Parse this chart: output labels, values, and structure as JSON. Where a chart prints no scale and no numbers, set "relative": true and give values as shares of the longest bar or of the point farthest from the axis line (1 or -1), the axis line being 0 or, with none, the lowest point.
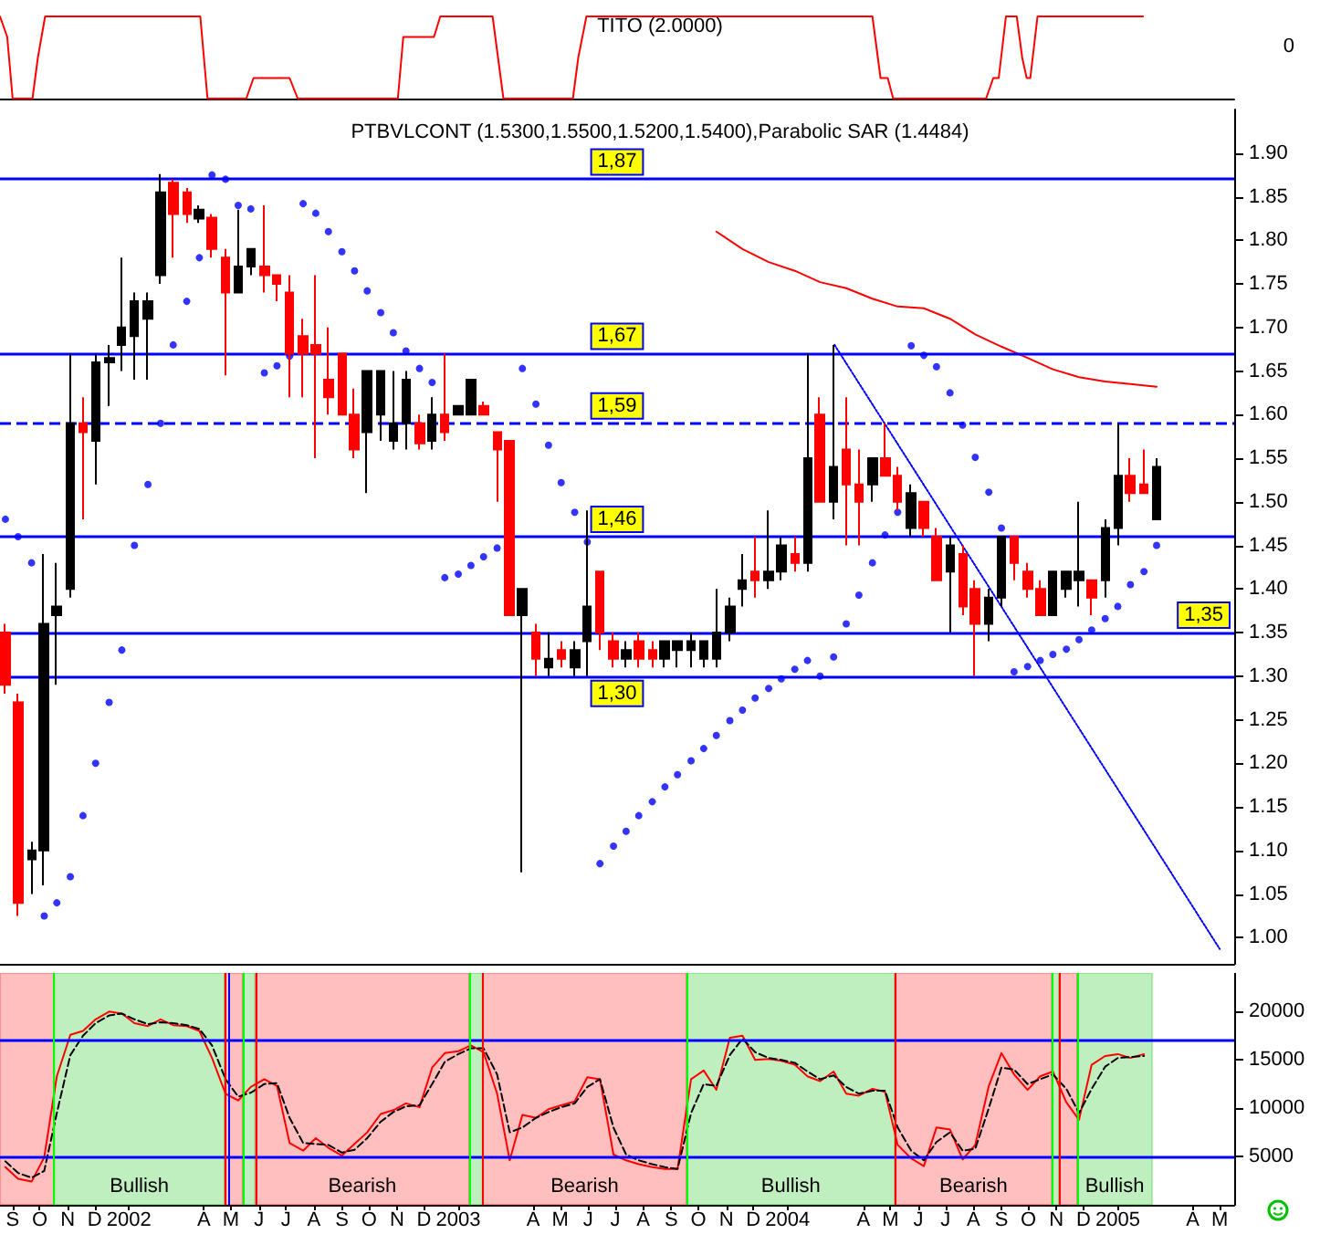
{
  "chart_data": [
    {
      "type": "line",
      "title": "TITO (2.0000)",
      "relative": true,
      "annotations": [
        "0"
      ],
      "tick_labels": false,
      "xlim": [
        "2001-08-31",
        "2005-05-30"
      ],
      "color": "#ff0000",
      "x": [
        "2001-08-31",
        "2001-09-08",
        "2001-09-14",
        "2001-10-06",
        "2001-10-12",
        "2001-10-20",
        "2002-04-10",
        "2002-04-18",
        "2002-05-31",
        "2002-06-08",
        "2002-07-18",
        "2002-07-27",
        "2002-11-15",
        "2002-11-21",
        "2002-12-25",
        "2003-01-01",
        "2003-02-28",
        "2003-03-06",
        "2003-03-12",
        "2003-05-28",
        "2003-06-03",
        "2003-06-12",
        "2004-04-24",
        "2004-05-03",
        "2004-05-11",
        "2004-05-17",
        "2004-08-28",
        "2004-09-05",
        "2004-09-11",
        "2004-09-19",
        "2004-10-01",
        "2004-10-07",
        "2004-10-12",
        "2004-10-16",
        "2004-10-24",
        "2005-02-18"
      ],
      "values": [
        1,
        0.75,
        0,
        0,
        0.5,
        1,
        1,
        0,
        0,
        0.25,
        0.25,
        0,
        0,
        0.75,
        0.75,
        1,
        1,
        0.5,
        0,
        0,
        0.5,
        1,
        1,
        0.25,
        0.25,
        0,
        0,
        0.25,
        0.25,
        1,
        1,
        0.5,
        0.25,
        0.25,
        1,
        1
      ]
    },
    {
      "type": "candlestick",
      "title": "PTBVLCONT (1.5300,1.5500,1.5200,1.5400),Parabolic SAR (1.4484)",
      "tick_labels": "y",
      "colors": [
        "#ff0000",
        "#ff0000",
        "#000000",
        "#000000",
        "#000000",
        "#000000",
        "#ff0000",
        "#000000",
        "#000000",
        "#000000",
        "#000000",
        "#000000",
        "#000000",
        "#ff0000",
        "#ff0000",
        "#000000",
        "#ff0000",
        "#ff0000",
        "#000000",
        "#000000",
        "#ff0000",
        "#ff0000",
        "#ff0000",
        "#ff0000",
        "#ff0000",
        "#ff0000",
        "#ff0000",
        "#ff0000",
        "#000000",
        "#000000",
        "#000000",
        "#000000",
        "#ff0000",
        "#000000",
        "#ff0000",
        "#000000",
        "#000000",
        "#ff0000",
        "#ff0000",
        "#ff0000",
        "#000000",
        "#ff0000",
        "#000000",
        "#ff0000",
        "#000000",
        "#000000",
        "#ff0000",
        "#ff0000",
        "#000000",
        "#ff0000",
        "#ff0000",
        "#000000",
        "#000000",
        "#000000",
        "#000000",
        "#000000",
        "#000000",
        "#000000",
        "#ff0000",
        "#000000",
        "#000000",
        "#ff0000",
        "#000000",
        "#ff0000",
        "#000000",
        "#ff0000",
        "#ff0000",
        "#000000",
        "#ff0000",
        "#ff0000",
        "#000000",
        "#ff0000",
        "#ff0000",
        "#000000",
        "#ff0000",
        "#ff0000",
        "#000000",
        "#000000",
        "#ff0000",
        "#ff0000",
        "#ff0000",
        "#000000",
        "#000000",
        "#000000",
        "#ff0000",
        "#000000",
        "#000000",
        "#ff0000",
        "#ff0000",
        "#000000"
      ],
      "xlim": [
        "2001-08-31",
        "2005-05-30"
      ],
      "ylim": [
        0.97,
        1.95
      ],
      "yticks": [
        {
          "value": 1.0,
          "label": "1.00"
        },
        {
          "value": 1.05,
          "label": "1.05"
        },
        {
          "value": 1.1,
          "label": "1.10"
        },
        {
          "value": 1.15,
          "label": "1.15"
        },
        {
          "value": 1.2,
          "label": "1.20"
        },
        {
          "value": 1.25,
          "label": "1.25"
        },
        {
          "value": 1.3,
          "label": "1.30"
        },
        {
          "value": 1.35,
          "label": "1.35"
        },
        {
          "value": 1.4,
          "label": "1.40"
        },
        {
          "value": 1.45,
          "label": "1.45"
        },
        {
          "value": 1.5,
          "label": "1.50"
        },
        {
          "value": 1.55,
          "label": "1.55"
        },
        {
          "value": 1.6,
          "label": "1.60"
        },
        {
          "value": 1.65,
          "label": "1.65"
        },
        {
          "value": 1.7,
          "label": "1.70"
        },
        {
          "value": 1.75,
          "label": "1.75"
        },
        {
          "value": 1.8,
          "label": "1.80"
        },
        {
          "value": 1.85,
          "label": "1.85"
        },
        {
          "value": 1.9,
          "label": "1.90"
        }
      ],
      "x": [
        "2001-09-06",
        "2001-09-20",
        "2001-10-05",
        "2001-10-19",
        "2001-11-02",
        "2001-11-17",
        "2001-12-01",
        "2001-12-15",
        "2001-12-30",
        "2002-01-13",
        "2002-01-27",
        "2002-02-11",
        "2002-02-25",
        "2002-03-11",
        "2002-03-26",
        "2002-04-09",
        "2002-04-23",
        "2002-05-08",
        "2002-05-22",
        "2002-06-05",
        "2002-06-20",
        "2002-07-04",
        "2002-07-18",
        "2002-08-02",
        "2002-08-16",
        "2002-08-30",
        "2002-09-14",
        "2002-09-28",
        "2002-10-12",
        "2002-10-27",
        "2002-11-10",
        "2002-11-24",
        "2002-12-09",
        "2002-12-23",
        "2003-01-06",
        "2003-01-21",
        "2003-02-04",
        "2003-02-18",
        "2003-03-05",
        "2003-03-19",
        "2003-04-02",
        "2003-04-17",
        "2003-05-01",
        "2003-05-15",
        "2003-05-30",
        "2003-06-13",
        "2003-06-27",
        "2003-07-12",
        "2003-07-26",
        "2003-08-09",
        "2003-08-24",
        "2003-09-07",
        "2003-09-21",
        "2003-10-06",
        "2003-10-20",
        "2003-11-03",
        "2003-11-18",
        "2003-12-02",
        "2003-12-16",
        "2003-12-31",
        "2004-01-14",
        "2004-01-29",
        "2004-02-12",
        "2004-02-26",
        "2004-03-12",
        "2004-03-26",
        "2004-04-09",
        "2004-04-24",
        "2004-05-08",
        "2004-05-22",
        "2004-06-06",
        "2004-06-20",
        "2004-07-04",
        "2004-07-19",
        "2004-08-02",
        "2004-08-16",
        "2004-08-31",
        "2004-09-14",
        "2004-09-28",
        "2004-10-13",
        "2004-10-27",
        "2004-11-10",
        "2004-11-25",
        "2004-12-09",
        "2004-12-23",
        "2005-01-07",
        "2005-01-21",
        "2005-02-04",
        "2005-02-19",
        "2005-03-05"
      ],
      "ohlc": [
        [
          1.35,
          1.36,
          1.28,
          1.29
        ],
        [
          1.27,
          1.28,
          1.025,
          1.04
        ],
        [
          1.09,
          1.11,
          1.05,
          1.1
        ],
        [
          1.1,
          1.44,
          1.06,
          1.36
        ],
        [
          1.37,
          1.43,
          1.29,
          1.38
        ],
        [
          1.4,
          1.67,
          1.39,
          1.59
        ],
        [
          1.59,
          1.62,
          1.48,
          1.58
        ],
        [
          1.57,
          1.67,
          1.52,
          1.66
        ],
        [
          1.66,
          1.68,
          1.61,
          1.665
        ],
        [
          1.68,
          1.78,
          1.65,
          1.7
        ],
        [
          1.69,
          1.74,
          1.64,
          1.73
        ],
        [
          1.71,
          1.74,
          1.64,
          1.73
        ],
        [
          1.76,
          1.876,
          1.75,
          1.855
        ],
        [
          1.866,
          1.87,
          1.78,
          1.83
        ],
        [
          1.855,
          1.86,
          1.82,
          1.83
        ],
        [
          1.825,
          1.84,
          1.82,
          1.835
        ],
        [
          1.826,
          1.83,
          1.78,
          1.79
        ],
        [
          1.78,
          1.79,
          1.645,
          1.74
        ],
        [
          1.74,
          1.835,
          1.74,
          1.77
        ],
        [
          1.77,
          1.79,
          1.76,
          1.79
        ],
        [
          1.77,
          1.84,
          1.74,
          1.76
        ],
        [
          1.76,
          1.76,
          1.73,
          1.75
        ],
        [
          1.74,
          1.76,
          1.62,
          1.67
        ],
        [
          1.69,
          1.71,
          1.62,
          1.67
        ],
        [
          1.68,
          1.76,
          1.55,
          1.67
        ],
        [
          1.64,
          1.7,
          1.6,
          1.62
        ],
        [
          1.67,
          1.67,
          1.6,
          1.6
        ],
        [
          1.6,
          1.63,
          1.55,
          1.56
        ],
        [
          1.58,
          1.65,
          1.51,
          1.65
        ],
        [
          1.6,
          1.65,
          1.57,
          1.65
        ],
        [
          1.57,
          1.65,
          1.56,
          1.59
        ],
        [
          1.59,
          1.65,
          1.56,
          1.64
        ],
        [
          1.59,
          1.6,
          1.56,
          1.567
        ],
        [
          1.57,
          1.62,
          1.56,
          1.6
        ],
        [
          1.6,
          1.67,
          1.57,
          1.58
        ],
        [
          1.6,
          1.61,
          1.6,
          1.61
        ],
        [
          1.6,
          1.64,
          1.6,
          1.64
        ],
        [
          1.61,
          1.615,
          1.6,
          1.6
        ],
        [
          1.58,
          1.58,
          1.5,
          1.56
        ],
        [
          1.57,
          1.57,
          1.37,
          1.37
        ],
        [
          1.37,
          1.4,
          1.075,
          1.4
        ],
        [
          1.35,
          1.36,
          1.3,
          1.32
        ],
        [
          1.31,
          1.35,
          1.3,
          1.32
        ],
        [
          1.33,
          1.34,
          1.31,
          1.32
        ],
        [
          1.31,
          1.34,
          1.3,
          1.33
        ],
        [
          1.34,
          1.49,
          1.3,
          1.38
        ],
        [
          1.42,
          1.42,
          1.33,
          1.35
        ],
        [
          1.34,
          1.35,
          1.31,
          1.32
        ],
        [
          1.32,
          1.34,
          1.31,
          1.33
        ],
        [
          1.34,
          1.35,
          1.31,
          1.32
        ],
        [
          1.33,
          1.34,
          1.31,
          1.32
        ],
        [
          1.32,
          1.34,
          1.31,
          1.34
        ],
        [
          1.33,
          1.34,
          1.31,
          1.34
        ],
        [
          1.33,
          1.35,
          1.31,
          1.34
        ],
        [
          1.32,
          1.34,
          1.31,
          1.34
        ],
        [
          1.32,
          1.4,
          1.31,
          1.35
        ],
        [
          1.35,
          1.39,
          1.34,
          1.38
        ],
        [
          1.4,
          1.44,
          1.38,
          1.41
        ],
        [
          1.42,
          1.46,
          1.39,
          1.41
        ],
        [
          1.41,
          1.49,
          1.4,
          1.42
        ],
        [
          1.42,
          1.46,
          1.41,
          1.45
        ],
        [
          1.44,
          1.46,
          1.42,
          1.43
        ],
        [
          1.43,
          1.67,
          1.42,
          1.55
        ],
        [
          1.6,
          1.62,
          1.5,
          1.5
        ],
        [
          1.5,
          1.68,
          1.48,
          1.54
        ],
        [
          1.56,
          1.62,
          1.45,
          1.52
        ],
        [
          1.52,
          1.56,
          1.45,
          1.5
        ],
        [
          1.52,
          1.55,
          1.5,
          1.55
        ],
        [
          1.55,
          1.59,
          1.53,
          1.53
        ],
        [
          1.53,
          1.54,
          1.49,
          1.5
        ],
        [
          1.47,
          1.52,
          1.46,
          1.51
        ],
        [
          1.5,
          1.5,
          1.46,
          1.47
        ],
        [
          1.46,
          1.47,
          1.41,
          1.41
        ],
        [
          1.42,
          1.46,
          1.35,
          1.45
        ],
        [
          1.44,
          1.45,
          1.37,
          1.38
        ],
        [
          1.4,
          1.41,
          1.3,
          1.36
        ],
        [
          1.36,
          1.4,
          1.34,
          1.39
        ],
        [
          1.39,
          1.46,
          1.38,
          1.46
        ],
        [
          1.46,
          1.46,
          1.41,
          1.43
        ],
        [
          1.42,
          1.43,
          1.39,
          1.4
        ],
        [
          1.4,
          1.41,
          1.37,
          1.37
        ],
        [
          1.37,
          1.42,
          1.37,
          1.42
        ],
        [
          1.4,
          1.42,
          1.39,
          1.42
        ],
        [
          1.41,
          1.5,
          1.38,
          1.42
        ],
        [
          1.41,
          1.41,
          1.37,
          1.39
        ],
        [
          1.41,
          1.48,
          1.39,
          1.47
        ],
        [
          1.47,
          1.59,
          1.45,
          1.53
        ],
        [
          1.53,
          1.55,
          1.5,
          1.51
        ],
        [
          1.52,
          1.56,
          1.51,
          1.51
        ],
        [
          1.48,
          1.55,
          1.48,
          1.54
        ]
      ],
      "series": [
        {
          "type": "scatter",
          "marker": "circle",
          "color": "#0000ff",
          "values": [
            1.48,
            1.46,
            1.43,
            1.025,
            1.04,
            1.07,
            1.14,
            1.2,
            1.27,
            1.33,
            1.45,
            1.52,
            1.59,
            1.68,
            1.73,
            1.78,
            1.875,
            1.87,
            1.84,
            1.836,
            1.648,
            1.656,
            1.667,
            1.842,
            1.831,
            1.81,
            1.787,
            1.765,
            1.742,
            1.717,
            1.694,
            1.673,
            1.653,
            1.637,
            1.413,
            1.417,
            1.427,
            1.437,
            1.447,
            null,
            1.653,
            1.612,
            1.565,
            1.522,
            1.488,
            1.454,
            1.085,
            1.105,
            1.122,
            1.14,
            1.156,
            1.173,
            1.187,
            1.203,
            1.217,
            1.232,
            1.249,
            1.261,
            1.275,
            1.286,
            1.297,
            1.308,
            1.318,
            1.3,
            1.322,
            1.36,
            1.393,
            1.43,
            1.462,
            1.488,
            1.679,
            1.668,
            1.655,
            1.625,
            1.588,
            1.551,
            1.511,
            1.47,
            1.305,
            1.311,
            1.318,
            1.325,
            1.331,
            1.342,
            1.353,
            1.366,
            1.38,
            1.405,
            1.42,
            1.45
          ]
        },
        {
          "type": "line",
          "color": "#ff0000",
          "x": [
            "2003-11-03",
            "2003-12-02",
            "2003-12-31",
            "2004-01-29",
            "2004-02-26",
            "2004-03-26",
            "2004-04-24",
            "2004-05-22",
            "2004-06-20",
            "2004-07-19",
            "2004-08-16",
            "2004-09-14",
            "2004-10-13",
            "2004-11-10",
            "2004-12-09",
            "2005-01-07",
            "2005-02-04",
            "2005-03-05"
          ],
          "values": [
            1.81,
            1.79,
            1.775,
            1.765,
            1.752,
            1.745,
            1.733,
            1.724,
            1.722,
            1.71,
            1.692,
            1.678,
            1.665,
            1.652,
            1.643,
            1.638,
            1.635,
            1.632
          ]
        },
        {
          "type": "line",
          "color": "#0000ff",
          "line_style": "dotted",
          "x": [
            "2004-03-13",
            "2005-05-14"
          ],
          "values": [
            1.68,
            0.987
          ]
        }
      ],
      "ref_lines": [
        {
          "axis": "y",
          "value": 1.87,
          "label": "1,87",
          "color": "#0000ff"
        },
        {
          "axis": "y",
          "value": 1.67,
          "label": "1,67",
          "color": "#0000ff"
        },
        {
          "axis": "y",
          "value": 1.59,
          "label": "1,59",
          "color": "#0000ff",
          "line_style": "dashed"
        },
        {
          "axis": "y",
          "value": 1.46,
          "label": "1,46",
          "color": "#0000ff"
        },
        {
          "axis": "y",
          "value": 1.35,
          "label": "1,35",
          "color": "#0000ff"
        },
        {
          "axis": "y",
          "value": 1.3,
          "label": "1,30",
          "color": "#0000ff"
        }
      ]
    },
    {
      "type": "line",
      "xlim": [
        "2001-08-31",
        "2005-05-30"
      ],
      "ylim": [
        0,
        24000
      ],
      "yticks": [
        5000,
        10000,
        15000,
        20000
      ],
      "xticks": [
        {
          "value": "2001-09-14",
          "label": "S"
        },
        {
          "value": "2001-10-14",
          "label": "O"
        },
        {
          "value": "2001-11-14",
          "label": "N"
        },
        {
          "value": "2001-12-14",
          "label": "D"
        },
        {
          "value": "2002-01-21",
          "label": "2002"
        },
        {
          "value": "2002-04-14",
          "label": "A"
        },
        {
          "value": "2002-05-14",
          "label": "M"
        },
        {
          "value": "2002-06-14",
          "label": "J"
        },
        {
          "value": "2002-07-14",
          "label": "J"
        },
        {
          "value": "2002-08-14",
          "label": "A"
        },
        {
          "value": "2002-09-14",
          "label": "S"
        },
        {
          "value": "2002-10-14",
          "label": "O"
        },
        {
          "value": "2002-11-14",
          "label": "N"
        },
        {
          "value": "2002-12-14",
          "label": "D"
        },
        {
          "value": "2003-01-21",
          "label": "2003"
        },
        {
          "value": "2003-04-14",
          "label": "A"
        },
        {
          "value": "2003-05-14",
          "label": "M"
        },
        {
          "value": "2003-06-14",
          "label": "J"
        },
        {
          "value": "2003-07-14",
          "label": "J"
        },
        {
          "value": "2003-08-14",
          "label": "A"
        },
        {
          "value": "2003-09-14",
          "label": "S"
        },
        {
          "value": "2003-10-14",
          "label": "O"
        },
        {
          "value": "2003-11-14",
          "label": "N"
        },
        {
          "value": "2003-12-14",
          "label": "D"
        },
        {
          "value": "2004-01-21",
          "label": "2004"
        },
        {
          "value": "2004-04-14",
          "label": "A"
        },
        {
          "value": "2004-05-14",
          "label": "M"
        },
        {
          "value": "2004-06-14",
          "label": "J"
        },
        {
          "value": "2004-07-14",
          "label": "J"
        },
        {
          "value": "2004-08-14",
          "label": "A"
        },
        {
          "value": "2004-09-14",
          "label": "S"
        },
        {
          "value": "2004-10-14",
          "label": "O"
        },
        {
          "value": "2004-11-14",
          "label": "N"
        },
        {
          "value": "2004-12-14",
          "label": "D"
        },
        {
          "value": "2005-01-21",
          "label": "2005"
        },
        {
          "value": "2005-04-14",
          "label": "A"
        },
        {
          "value": "2005-05-14",
          "label": "M"
        }
      ],
      "x": [
        "2001-09-06",
        "2001-09-20",
        "2001-10-05",
        "2001-10-19",
        "2001-11-02",
        "2001-11-17",
        "2001-12-01",
        "2001-12-15",
        "2001-12-30",
        "2002-01-13",
        "2002-01-27",
        "2002-02-11",
        "2002-02-25",
        "2002-03-11",
        "2002-03-26",
        "2002-04-09",
        "2002-04-23",
        "2002-05-08",
        "2002-05-22",
        "2002-06-05",
        "2002-06-20",
        "2002-07-04",
        "2002-07-18",
        "2002-08-02",
        "2002-08-16",
        "2002-08-30",
        "2002-09-14",
        "2002-09-28",
        "2002-10-12",
        "2002-10-27",
        "2002-11-10",
        "2002-11-24",
        "2002-12-09",
        "2002-12-23",
        "2003-01-06",
        "2003-01-21",
        "2003-02-04",
        "2003-02-18",
        "2003-03-05",
        "2003-03-19",
        "2003-04-02",
        "2003-04-17",
        "2003-05-01",
        "2003-05-15",
        "2003-05-30",
        "2003-06-13",
        "2003-06-27",
        "2003-07-12",
        "2003-07-26",
        "2003-08-09",
        "2003-08-24",
        "2003-09-07",
        "2003-09-21",
        "2003-10-06",
        "2003-10-20",
        "2003-11-03",
        "2003-11-18",
        "2003-12-02",
        "2003-12-16",
        "2003-12-31",
        "2004-01-14",
        "2004-01-29",
        "2004-02-12",
        "2004-02-26",
        "2004-03-12",
        "2004-03-26",
        "2004-04-09",
        "2004-04-24",
        "2004-05-08",
        "2004-05-22",
        "2004-06-06",
        "2004-06-20",
        "2004-07-04",
        "2004-07-19",
        "2004-08-02",
        "2004-08-16",
        "2004-08-31",
        "2004-09-14",
        "2004-09-28",
        "2004-10-13",
        "2004-10-27",
        "2004-11-10",
        "2004-11-25",
        "2004-12-09",
        "2004-12-23",
        "2005-01-07",
        "2005-01-21",
        "2005-02-04",
        "2005-02-19"
      ],
      "series": [
        {
          "color": "#ff0000",
          "values": [
            3900,
            2700,
            2400,
            4900,
            13300,
            17600,
            18000,
            19200,
            20000,
            19800,
            18800,
            18500,
            19200,
            18600,
            18500,
            18000,
            15200,
            11500,
            10800,
            12200,
            13000,
            12300,
            6400,
            5600,
            6900,
            5900,
            5100,
            6300,
            7500,
            9400,
            9800,
            10500,
            10100,
            14200,
            15700,
            15900,
            16500,
            15800,
            11500,
            4600,
            9300,
            9000,
            9900,
            10300,
            10700,
            13200,
            13000,
            5200,
            4600,
            4200,
            3900,
            3700,
            3700,
            13000,
            13900,
            11900,
            17300,
            17500,
            15000,
            15100,
            14900,
            14500,
            13300,
            12800,
            13800,
            11500,
            11300,
            12000,
            11700,
            6200,
            4800,
            4000,
            8000,
            7800,
            4700,
            6200,
            12300,
            15700,
            13500,
            11900,
            13300,
            13800,
            10600,
            8800,
            14500,
            15400,
            15600,
            15200,
            15600
          ]
        },
        {
          "color": "#000000",
          "line_style": "dashed",
          "values": [
            4500,
            3300,
            2800,
            3500,
            9500,
            15500,
            17500,
            18800,
            19600,
            19800,
            19200,
            18700,
            18900,
            18800,
            18600,
            18200,
            16500,
            13000,
            11200,
            11600,
            12500,
            12600,
            9000,
            6400,
            6300,
            6200,
            5400,
            5700,
            6900,
            8600,
            9600,
            10200,
            10300,
            12500,
            14800,
            15600,
            16200,
            16200,
            13500,
            7500,
            8000,
            9000,
            9600,
            10100,
            10500,
            12200,
            13000,
            8000,
            5200,
            4600,
            4200,
            3900,
            3700,
            9500,
            12500,
            12300,
            15500,
            17200,
            15800,
            15200,
            15000,
            14700,
            13800,
            13000,
            13400,
            12200,
            11500,
            11800,
            11800,
            8000,
            5600,
            4600,
            6500,
            7500,
            5600,
            5800,
            10000,
            14200,
            14000,
            12500,
            13000,
            13500,
            12000,
            9500,
            12000,
            14300,
            15200,
            15300,
            15400
          ]
        }
      ],
      "ref_lines": [
        {
          "axis": "y",
          "value": 17000,
          "color": "#0000ff"
        },
        {
          "axis": "y",
          "value": 5000,
          "color": "#0000ff"
        },
        {
          "axis": "x",
          "value": "2001-10-30",
          "color": "#00ff00"
        },
        {
          "axis": "x",
          "value": "2002-05-07",
          "color": "#ff0000"
        },
        {
          "axis": "x",
          "value": "2002-05-11",
          "color": "#0000ff"
        },
        {
          "axis": "x",
          "value": "2002-05-27",
          "color": "#00ff00"
        },
        {
          "axis": "x",
          "value": "2002-06-10",
          "color": "#ff0000"
        },
        {
          "axis": "x",
          "value": "2003-02-02",
          "color": "#00ff00"
        },
        {
          "axis": "x",
          "value": "2003-02-17",
          "color": "#ff0000"
        },
        {
          "axis": "x",
          "value": "2003-10-01",
          "color": "#00ff00"
        },
        {
          "axis": "x",
          "value": "2004-05-19",
          "color": "#ff0000"
        },
        {
          "axis": "x",
          "value": "2004-11-09",
          "color": "#00ff00"
        },
        {
          "axis": "x",
          "value": "2004-11-17",
          "color": "#ff0000"
        },
        {
          "axis": "x",
          "value": "2004-12-07",
          "color": "#00ff00"
        }
      ],
      "bands": [
        {
          "axis": "x",
          "from": "2001-08-31",
          "to": "2001-10-30",
          "color": "#ff0000"
        },
        {
          "axis": "x",
          "from": "2001-10-30",
          "to": "2002-05-07",
          "label": "Bullish",
          "color": "#00c000"
        },
        {
          "axis": "x",
          "from": "2002-05-07",
          "to": "2002-05-27",
          "color": "#ff0000"
        },
        {
          "axis": "x",
          "from": "2002-05-27",
          "to": "2002-06-10",
          "color": "#00c000"
        },
        {
          "axis": "x",
          "from": "2002-06-10",
          "to": "2003-02-02",
          "label": "Bearish",
          "color": "#ff0000"
        },
        {
          "axis": "x",
          "from": "2003-02-02",
          "to": "2003-02-17",
          "color": "#00c000"
        },
        {
          "axis": "x",
          "from": "2003-02-17",
          "to": "2003-10-01",
          "label": "Bearish",
          "color": "#ff0000"
        },
        {
          "axis": "x",
          "from": "2003-10-01",
          "to": "2004-05-19",
          "label": "Bullish",
          "color": "#00c000"
        },
        {
          "axis": "x",
          "from": "2004-05-19",
          "to": "2004-11-09",
          "label": "Bearish",
          "color": "#ff0000"
        },
        {
          "axis": "x",
          "from": "2004-11-09",
          "to": "2004-11-17",
          "color": "#00c000"
        },
        {
          "axis": "x",
          "from": "2004-11-17",
          "to": "2004-12-07",
          "color": "#ff0000"
        },
        {
          "axis": "x",
          "from": "2004-12-07",
          "to": "2005-02-28",
          "label": "Bullish",
          "color": "#00c000"
        }
      ]
    }
  ]
}
